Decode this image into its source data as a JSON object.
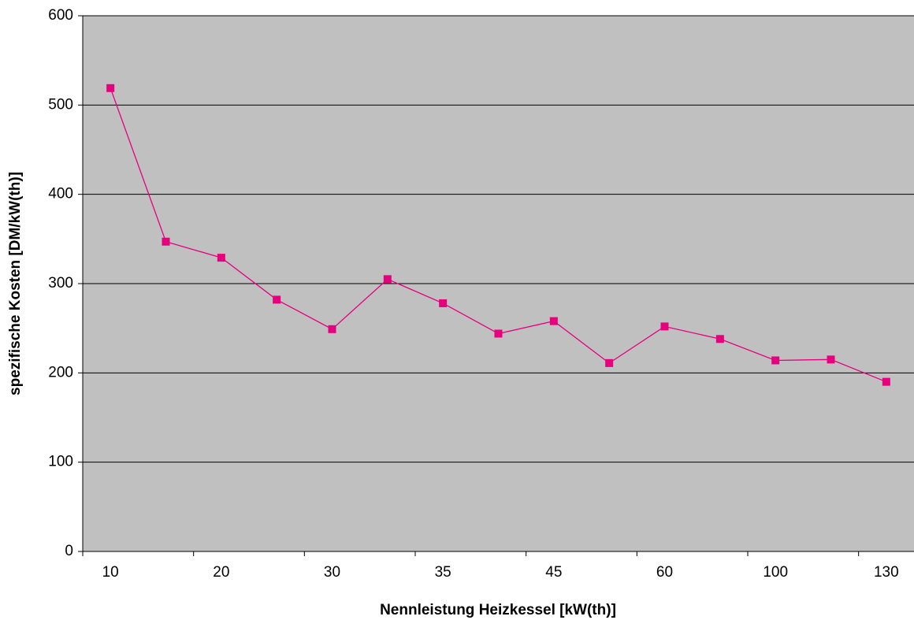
{
  "chart_data": {
    "type": "line",
    "xlabel": "Nennleistung Heizkessel [kW(th)]",
    "ylabel": "spezifische Kosten [DM/kW(th)]",
    "categories": [
      "10",
      null,
      "20",
      null,
      "30",
      null,
      "35",
      null,
      "45",
      null,
      "60",
      null,
      "100",
      null,
      "130"
    ],
    "series": [
      {
        "name": "spezifische Kosten",
        "color": "#e6007e",
        "values": [
          519,
          347,
          329,
          282,
          249,
          305,
          278,
          244,
          258,
          211,
          252,
          238,
          214,
          215,
          190
        ]
      }
    ],
    "ylim": [
      0,
      600
    ],
    "yticks": [
      0,
      100,
      200,
      300,
      400,
      500,
      600
    ],
    "grid": true
  }
}
